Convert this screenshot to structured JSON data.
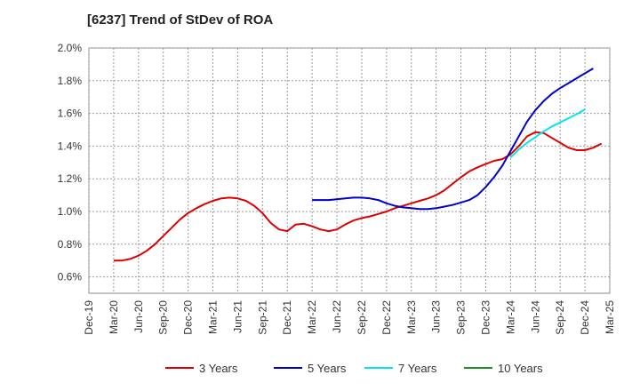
{
  "chart_data": {
    "type": "line",
    "title": "[6237]  Trend of StDev of ROA",
    "xlabel": "",
    "ylabel": "",
    "y_unit": "%",
    "ylim": [
      0.5,
      2.0
    ],
    "y_ticks": [
      "2.0%",
      "1.8%",
      "1.6%",
      "1.4%",
      "1.2%",
      "1.0%",
      "0.8%",
      "0.6%"
    ],
    "y_tick_values": [
      2.0,
      1.8,
      1.6,
      1.4,
      1.2,
      1.0,
      0.8,
      0.6
    ],
    "x_ticks": [
      "Dec-19",
      "Mar-20",
      "Jun-20",
      "Sep-20",
      "Dec-20",
      "Mar-21",
      "Jun-21",
      "Sep-21",
      "Dec-21",
      "Mar-22",
      "Jun-22",
      "Sep-22",
      "Dec-22",
      "Mar-23",
      "Jun-23",
      "Sep-23",
      "Dec-23",
      "Mar-24",
      "Jun-24",
      "Sep-24",
      "Dec-24",
      "Mar-25"
    ],
    "grid": true,
    "legend_position": "bottom",
    "series": [
      {
        "name": "3 Years",
        "color": "#dd0000",
        "start_month": 3,
        "values": [
          0.7,
          0.7,
          0.71,
          0.73,
          0.76,
          0.8,
          0.85,
          0.9,
          0.95,
          0.99,
          1.02,
          1.045,
          1.065,
          1.08,
          1.085,
          1.08,
          1.065,
          1.035,
          0.99,
          0.93,
          0.89,
          0.88,
          0.92,
          0.925,
          0.91,
          0.89,
          0.88,
          0.89,
          0.92,
          0.945,
          0.96,
          0.97,
          0.985,
          1.0,
          1.02,
          1.035,
          1.05,
          1.065,
          1.08,
          1.1,
          1.13,
          1.17,
          1.21,
          1.245,
          1.27,
          1.29,
          1.31,
          1.32,
          1.35,
          1.4,
          1.46,
          1.485,
          1.48,
          1.45,
          1.42,
          1.39,
          1.375,
          1.375,
          1.39,
          1.415
        ]
      },
      {
        "name": "5 Years",
        "color": "#0000cc",
        "start_month": 27,
        "values": [
          1.07,
          1.07,
          1.07,
          1.075,
          1.08,
          1.085,
          1.085,
          1.08,
          1.07,
          1.05,
          1.035,
          1.025,
          1.02,
          1.015,
          1.015,
          1.02,
          1.03,
          1.04,
          1.055,
          1.07,
          1.1,
          1.15,
          1.21,
          1.28,
          1.37,
          1.46,
          1.55,
          1.62,
          1.675,
          1.72,
          1.755,
          1.785,
          1.815,
          1.845,
          1.875
        ]
      },
      {
        "name": "7 Years",
        "color": "#00e5ee",
        "start_month": 51,
        "values": [
          1.33,
          1.38,
          1.42,
          1.455,
          1.49,
          1.52,
          1.545,
          1.57,
          1.595,
          1.625
        ]
      },
      {
        "name": "10 Years",
        "color": "#228b22",
        "start_month": 0,
        "values": []
      }
    ]
  }
}
